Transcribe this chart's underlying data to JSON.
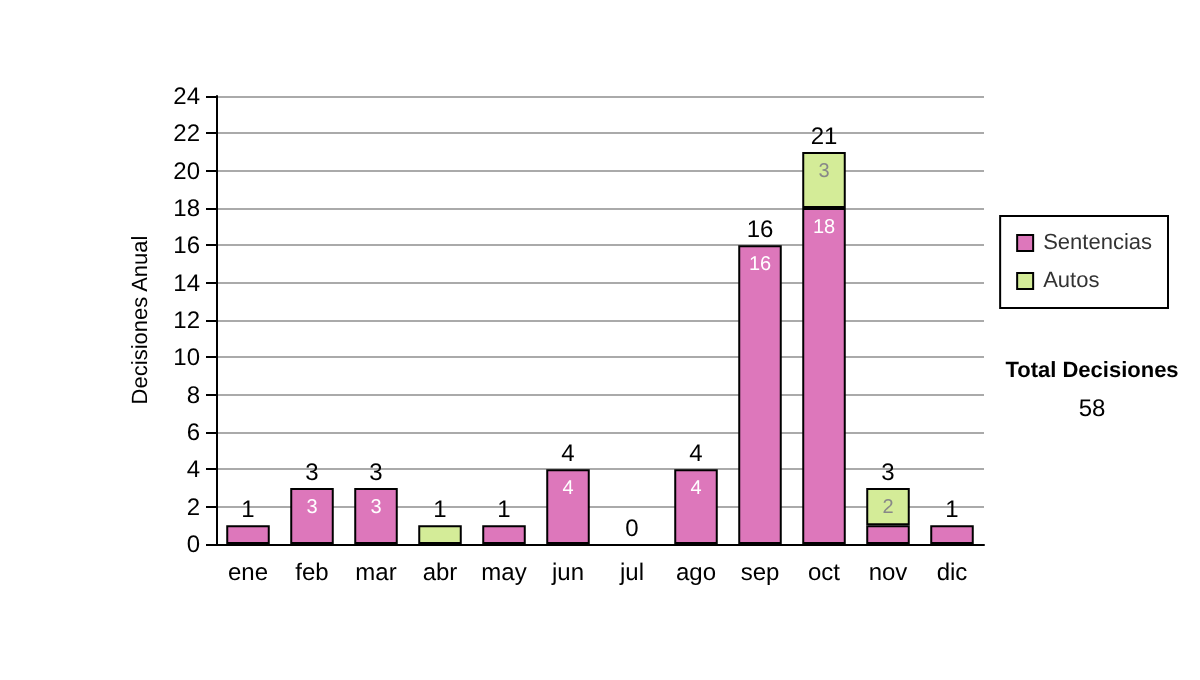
{
  "chart_data": {
    "type": "bar",
    "stacked": true,
    "ylabel": "Decisiones Anual",
    "categories": [
      "ene",
      "feb",
      "mar",
      "abr",
      "may",
      "jun",
      "jul",
      "ago",
      "sep",
      "oct",
      "nov",
      "dic"
    ],
    "series": [
      {
        "name": "Sentencias",
        "color": "#dd77bb",
        "values": [
          1,
          3,
          3,
          0,
          1,
          4,
          0,
          4,
          16,
          18,
          1,
          1
        ],
        "value_labels": [
          null,
          "3",
          "3",
          null,
          null,
          "4",
          null,
          "4",
          "16",
          "18",
          null,
          null
        ]
      },
      {
        "name": "Autos",
        "color": "#d4ec98",
        "values": [
          0,
          0,
          0,
          1,
          0,
          0,
          0,
          0,
          0,
          3,
          2,
          0
        ],
        "value_labels": [
          null,
          null,
          null,
          null,
          null,
          null,
          null,
          null,
          null,
          "3",
          "2",
          null
        ]
      }
    ],
    "totals": [
      "1",
      "3",
      "3",
      "1",
      "1",
      "4",
      "0",
      "4",
      "16",
      "21",
      "3",
      "1"
    ],
    "ylim": [
      0,
      24
    ],
    "yticks": [
      0,
      2,
      4,
      6,
      8,
      10,
      12,
      14,
      16,
      18,
      20,
      22,
      24
    ],
    "grid": "y",
    "legend": "right",
    "annotations": [
      "Total Decisiones",
      "58"
    ]
  }
}
